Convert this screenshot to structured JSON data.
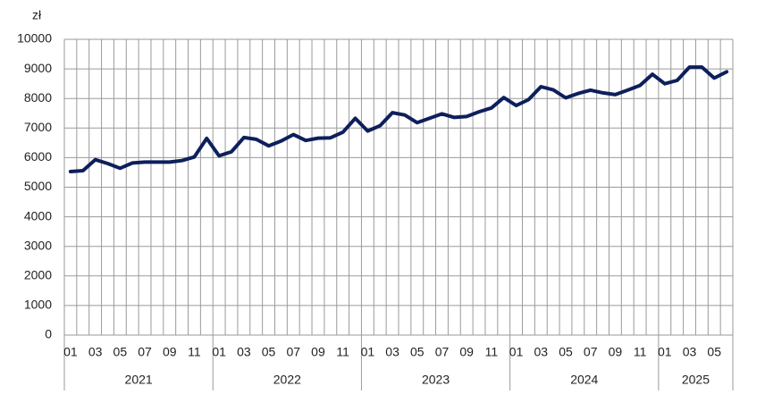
{
  "chart_data": {
    "type": "line",
    "y_label": "zł",
    "categories": [
      "01",
      null,
      "03",
      null,
      "05",
      null,
      "07",
      null,
      "09",
      null,
      "11",
      null,
      "01",
      null,
      "03",
      null,
      "05",
      null,
      "07",
      null,
      "09",
      null,
      "11",
      null,
      "01",
      null,
      "03",
      null,
      "05",
      null,
      "07",
      null,
      "09",
      null,
      "11",
      null,
      "01",
      null,
      "03",
      null,
      "05",
      null,
      "07",
      null,
      "09",
      null,
      "11",
      null,
      "01",
      null,
      "03",
      null,
      "05",
      null
    ],
    "groups": [
      "2021",
      "2022",
      "2023",
      "2024",
      "2025"
    ],
    "values": [
      5530,
      5560,
      5930,
      5800,
      5640,
      5820,
      5850,
      5850,
      5850,
      5900,
      6020,
      6650,
      6060,
      6200,
      6680,
      6620,
      6400,
      6560,
      6780,
      6580,
      6660,
      6670,
      6860,
      7330,
      6900,
      7080,
      7520,
      7440,
      7180,
      7330,
      7480,
      7360,
      7390,
      7550,
      7680,
      8030,
      7760,
      7960,
      8400,
      8290,
      8020,
      8170,
      8280,
      8190,
      8130,
      8280,
      8440,
      8820,
      8500,
      8610,
      9060,
      9060,
      8690,
      8900
    ],
    "color": "#0d1f5c",
    "ylim": [
      0,
      10000
    ],
    "yticks": [
      0,
      1000,
      2000,
      3000,
      4000,
      5000,
      6000,
      7000,
      8000,
      9000,
      10000
    ],
    "grid": true
  }
}
